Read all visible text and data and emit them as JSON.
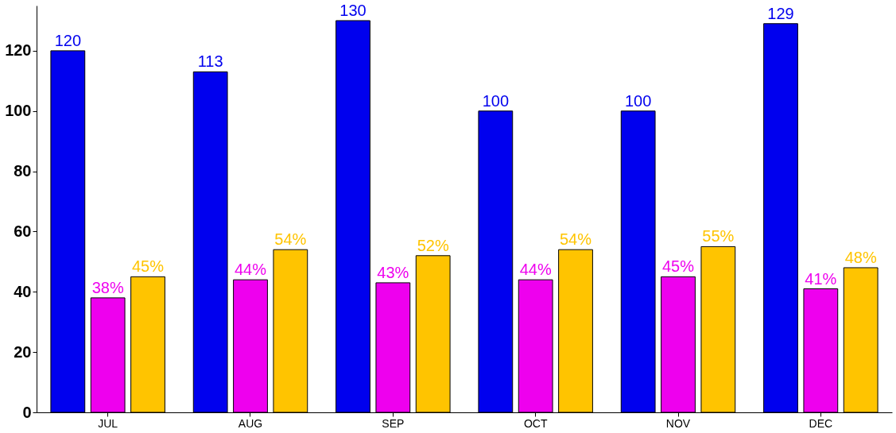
{
  "chart_data": {
    "type": "bar",
    "categories": [
      "JUL",
      "AUG",
      "SEP",
      "OCT",
      "NOV",
      "DEC"
    ],
    "series": [
      {
        "color": "#0000ee",
        "values": [
          120,
          113,
          130,
          100,
          100,
          129
        ],
        "value_labels": [
          "120",
          "113",
          "130",
          "100",
          "100",
          "129"
        ]
      },
      {
        "color": "#ee00ee",
        "values": [
          38,
          44,
          43,
          44,
          45,
          41
        ],
        "value_labels": [
          "38%",
          "44%",
          "43%",
          "44%",
          "45%",
          "41%"
        ]
      },
      {
        "color": "#ffc400",
        "values": [
          45,
          54,
          52,
          54,
          55,
          48
        ],
        "value_labels": [
          "45%",
          "54%",
          "52%",
          "54%",
          "55%",
          "48%"
        ]
      }
    ],
    "ylim": [
      0,
      135
    ],
    "yticks": [
      0,
      20,
      40,
      60,
      80,
      100,
      120
    ],
    "grid": false
  }
}
